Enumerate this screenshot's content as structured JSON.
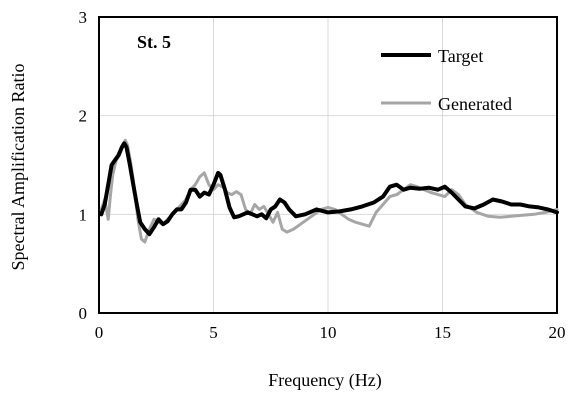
{
  "chart_data": {
    "type": "line",
    "xlabel": "Frequency (Hz)",
    "ylabel": "Spectral  Amplification Ratio",
    "xlim": [
      0,
      20
    ],
    "ylim": [
      0,
      3
    ],
    "xticks": [
      0,
      5,
      10,
      15,
      20
    ],
    "yticks": [
      0,
      1,
      2,
      3
    ],
    "grid": true,
    "legend_position": "top-right",
    "annotation": "St. 5",
    "series": [
      {
        "name": "Target",
        "color": "#000000",
        "x": [
          0.1,
          0.25,
          0.4,
          0.55,
          0.7,
          0.85,
          1.0,
          1.1,
          1.2,
          1.35,
          1.5,
          1.65,
          1.8,
          2.0,
          2.2,
          2.4,
          2.6,
          2.8,
          3.0,
          3.2,
          3.4,
          3.6,
          3.8,
          4.0,
          4.2,
          4.4,
          4.6,
          4.8,
          5.0,
          5.2,
          5.3,
          5.5,
          5.7,
          5.9,
          6.1,
          6.3,
          6.5,
          6.7,
          6.9,
          7.1,
          7.3,
          7.5,
          7.7,
          7.9,
          8.1,
          8.3,
          8.6,
          9.0,
          9.5,
          10.0,
          10.5,
          11.0,
          11.5,
          12.0,
          12.4,
          12.7,
          13.0,
          13.3,
          13.6,
          14.0,
          14.4,
          14.8,
          15.1,
          15.4,
          15.7,
          16.0,
          16.4,
          16.8,
          17.2,
          17.6,
          18.0,
          18.4,
          18.8,
          19.2,
          19.6,
          20.0
        ],
        "y": [
          1.0,
          1.1,
          1.3,
          1.5,
          1.55,
          1.6,
          1.68,
          1.72,
          1.68,
          1.5,
          1.3,
          1.1,
          0.92,
          0.85,
          0.8,
          0.87,
          0.95,
          0.9,
          0.93,
          1.0,
          1.05,
          1.05,
          1.12,
          1.25,
          1.25,
          1.18,
          1.22,
          1.2,
          1.3,
          1.42,
          1.4,
          1.25,
          1.07,
          0.97,
          0.98,
          1.0,
          1.02,
          1.0,
          0.98,
          1.0,
          0.96,
          1.05,
          1.08,
          1.15,
          1.12,
          1.05,
          0.98,
          1.0,
          1.05,
          1.02,
          1.03,
          1.05,
          1.08,
          1.12,
          1.18,
          1.28,
          1.3,
          1.25,
          1.27,
          1.26,
          1.27,
          1.25,
          1.28,
          1.22,
          1.15,
          1.08,
          1.06,
          1.1,
          1.15,
          1.13,
          1.1,
          1.1,
          1.08,
          1.07,
          1.05,
          1.02
        ]
      },
      {
        "name": "Generated",
        "color": "#a6a6a6",
        "x": [
          0.1,
          0.25,
          0.4,
          0.5,
          0.6,
          0.75,
          0.9,
          1.05,
          1.15,
          1.25,
          1.4,
          1.55,
          1.7,
          1.85,
          2.0,
          2.2,
          2.4,
          2.6,
          2.8,
          3.0,
          3.2,
          3.4,
          3.6,
          3.8,
          4.0,
          4.2,
          4.4,
          4.6,
          4.8,
          5.0,
          5.2,
          5.4,
          5.6,
          5.8,
          6.0,
          6.2,
          6.4,
          6.6,
          6.8,
          7.0,
          7.2,
          7.4,
          7.6,
          7.8,
          8.0,
          8.2,
          8.5,
          8.8,
          9.1,
          9.4,
          9.7,
          10.0,
          10.3,
          10.6,
          10.9,
          11.2,
          11.5,
          11.8,
          12.1,
          12.4,
          12.7,
          13.0,
          13.3,
          13.6,
          13.9,
          14.2,
          14.5,
          14.8,
          15.1,
          15.4,
          15.7,
          16.0,
          16.5,
          17.0,
          17.5,
          18.0,
          18.5,
          19.0,
          19.5,
          20.0
        ],
        "y": [
          1.05,
          1.15,
          0.95,
          1.2,
          1.4,
          1.55,
          1.6,
          1.7,
          1.75,
          1.7,
          1.5,
          1.25,
          0.95,
          0.75,
          0.72,
          0.85,
          0.95,
          0.92,
          0.9,
          0.95,
          1.0,
          1.05,
          1.1,
          1.15,
          1.25,
          1.3,
          1.38,
          1.42,
          1.3,
          1.25,
          1.3,
          1.28,
          1.22,
          1.2,
          1.23,
          1.2,
          1.05,
          1.0,
          1.1,
          1.05,
          1.08,
          1.0,
          0.92,
          1.02,
          0.85,
          0.82,
          0.85,
          0.9,
          0.95,
          1.0,
          1.05,
          1.07,
          1.05,
          1.0,
          0.95,
          0.92,
          0.9,
          0.88,
          1.02,
          1.1,
          1.18,
          1.2,
          1.25,
          1.3,
          1.28,
          1.25,
          1.22,
          1.2,
          1.18,
          1.25,
          1.2,
          1.1,
          1.02,
          0.98,
          0.97,
          0.98,
          0.99,
          1.0,
          1.02,
          1.05
        ]
      }
    ]
  }
}
